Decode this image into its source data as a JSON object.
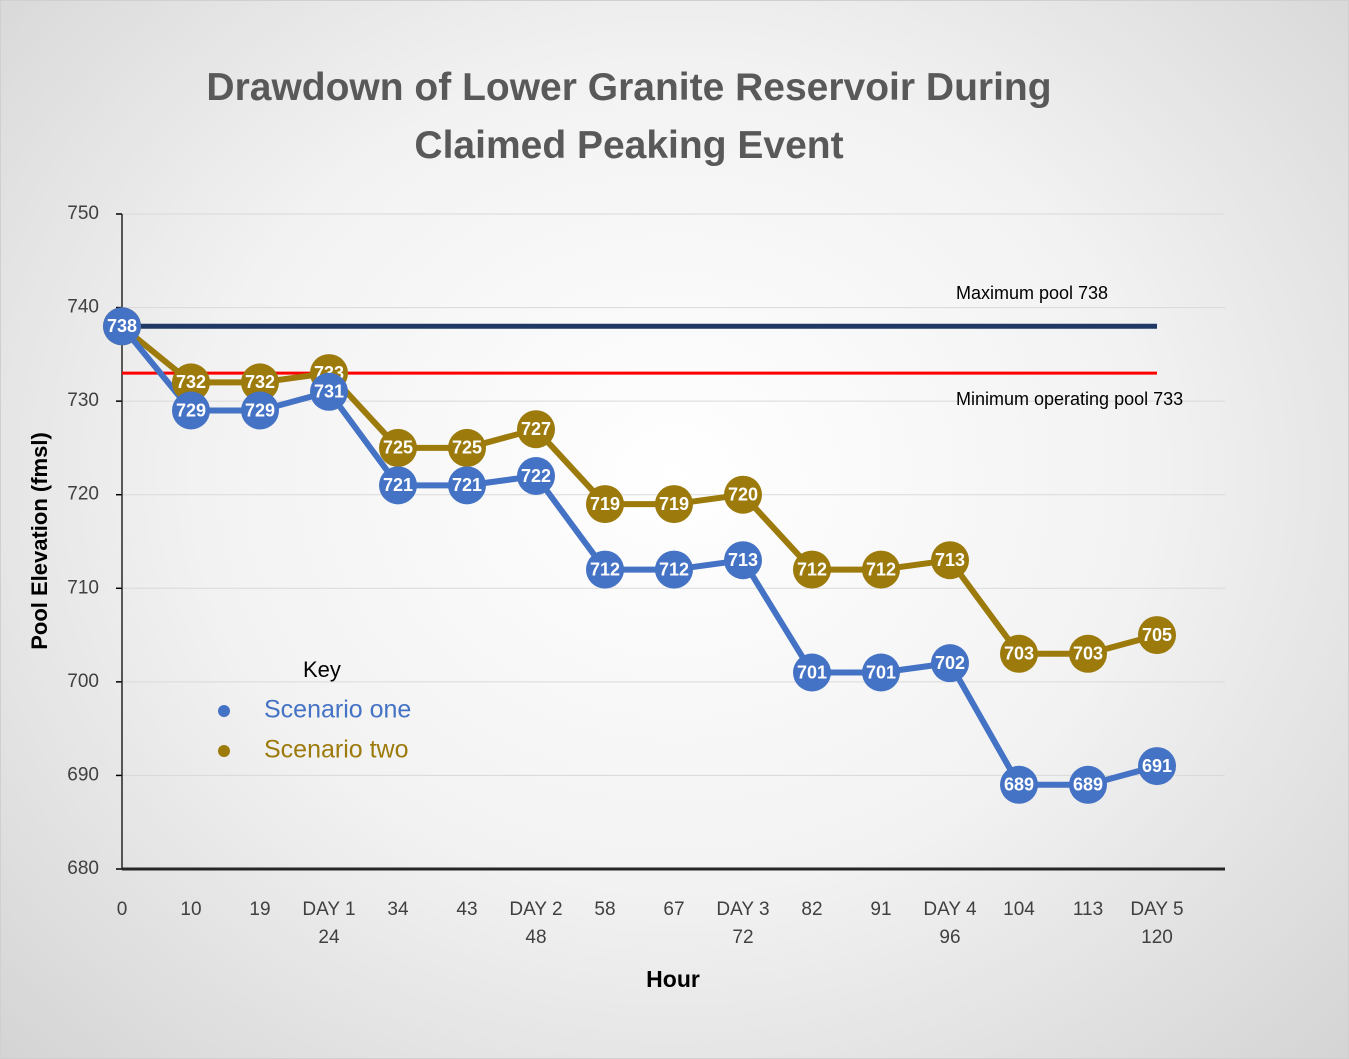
{
  "chart_data": {
    "type": "line",
    "title": "Drawdown of Lower Granite Reservoir During Claimed Peaking Event",
    "x_label": "Hour",
    "y_label": "Pool Elevation (fmsl)",
    "categories": [
      "0",
      "10",
      "19",
      "DAY 1\n24",
      "34",
      "43",
      "DAY 2\n48",
      "58",
      "67",
      "DAY 3\n72",
      "82",
      "91",
      "DAY 4\n96",
      "104",
      "113",
      "DAY 5\n120"
    ],
    "series": [
      {
        "name": "Scenario one",
        "color": "#4472c4",
        "values": [
          738,
          729,
          729,
          731,
          721,
          721,
          722,
          712,
          712,
          713,
          701,
          701,
          702,
          689,
          689,
          691
        ]
      },
      {
        "name": "Scenario two",
        "color": "#9c7a0c",
        "values": [
          738,
          732,
          732,
          733,
          725,
          725,
          727,
          719,
          719,
          720,
          712,
          712,
          713,
          703,
          703,
          705
        ]
      }
    ],
    "reference_lines": [
      {
        "label": "Maximum pool 738",
        "value": 738,
        "color": "#1f3864"
      },
      {
        "label": "Minimum operating pool 733",
        "value": 733,
        "color": "#ff0000"
      }
    ],
    "legend_title": "Key",
    "ylim": [
      680,
      750
    ],
    "yticks": [
      680,
      690,
      700,
      710,
      720,
      730,
      740,
      750
    ],
    "grid": true
  }
}
